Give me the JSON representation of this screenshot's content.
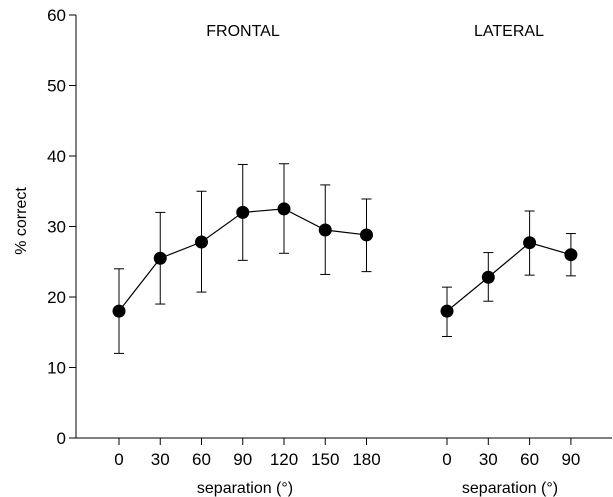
{
  "chart_data": {
    "type": "line",
    "ylabel": "% correct",
    "ylim": [
      0,
      60
    ],
    "yticks": [
      0,
      10,
      20,
      30,
      40,
      50,
      60
    ],
    "grid": false,
    "legend": "none",
    "panels": [
      {
        "title": "FRONTAL",
        "xlabel": "separation (°)",
        "x": [
          0,
          30,
          60,
          90,
          120,
          150,
          180
        ],
        "tick_labels": [
          "0",
          "30",
          "60",
          "90",
          "120",
          "150",
          "180"
        ],
        "values": [
          18,
          25.5,
          27.8,
          32,
          32.5,
          29.5,
          28.8
        ],
        "error_low": [
          12,
          19,
          20.7,
          25.2,
          26.2,
          23.2,
          23.6
        ],
        "error_high": [
          24,
          32,
          35,
          38.8,
          38.9,
          35.9,
          33.9
        ]
      },
      {
        "title": "LATERAL",
        "xlabel": "separation (°)",
        "x": [
          0,
          30,
          60,
          90
        ],
        "tick_labels": [
          "0",
          "30",
          "60",
          "90"
        ],
        "values": [
          18,
          22.8,
          27.7,
          26
        ],
        "error_low": [
          14.4,
          19.4,
          23.1,
          23
        ],
        "error_high": [
          21.4,
          26.3,
          32.2,
          29
        ]
      }
    ]
  }
}
